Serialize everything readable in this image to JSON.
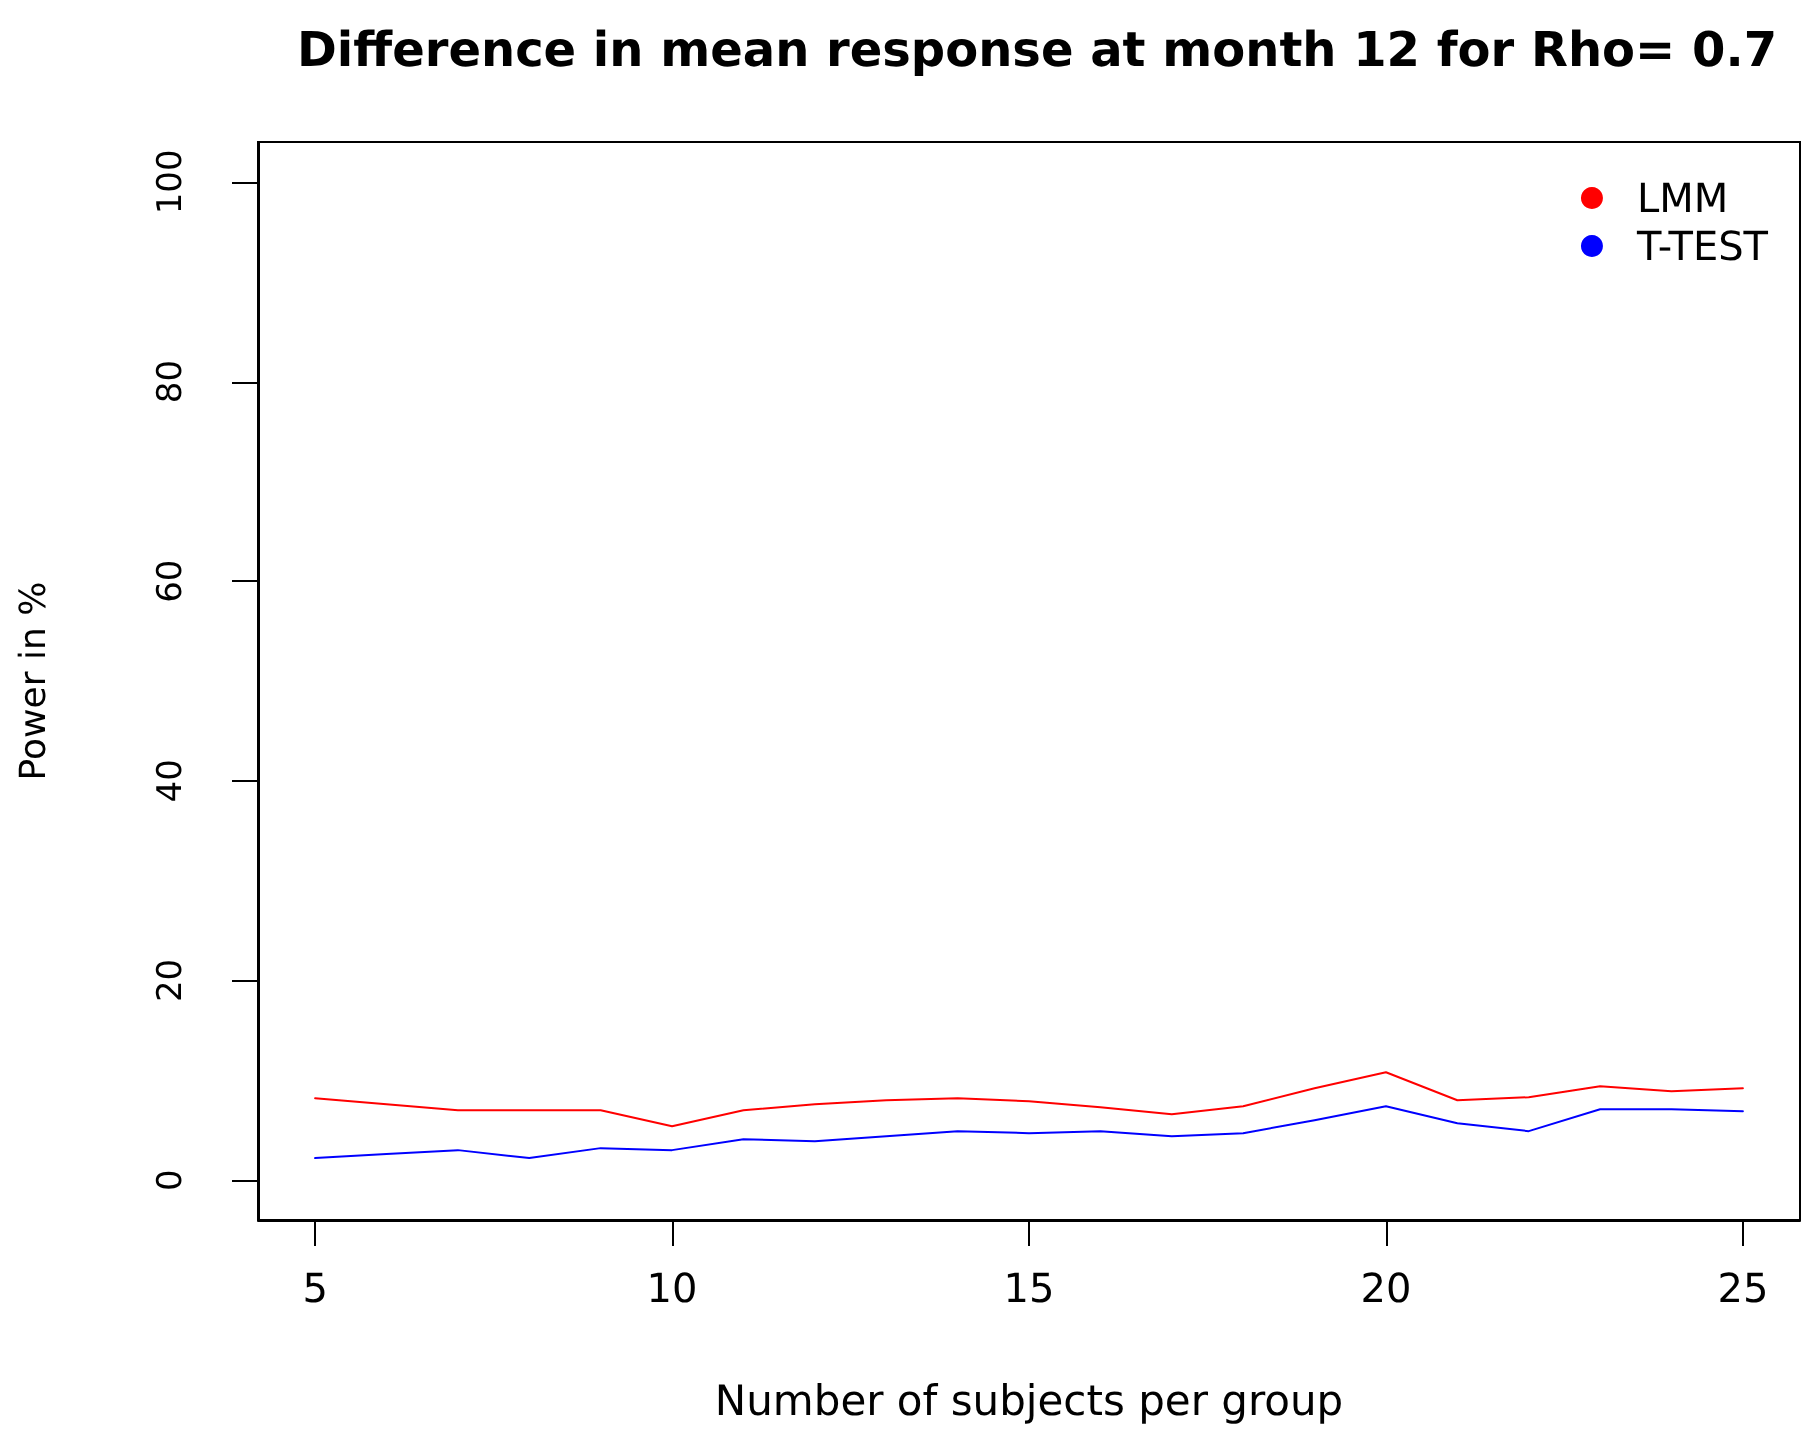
{
  "chart_data": {
    "type": "line",
    "title": "Difference in mean response at month 12 for Rho= 0.7",
    "xlabel": "Number of subjects per group",
    "ylabel": "Power in %",
    "x": [
      5,
      6,
      7,
      8,
      9,
      10,
      11,
      12,
      13,
      14,
      15,
      16,
      17,
      18,
      19,
      20,
      21,
      22,
      23,
      24,
      25
    ],
    "series": [
      {
        "name": "LMM",
        "color": "#ff0000",
        "values": [
          8.2,
          7.6,
          7.0,
          7.0,
          7.0,
          5.4,
          7.0,
          7.6,
          8.0,
          8.2,
          7.9,
          7.3,
          6.6,
          7.4,
          9.2,
          10.8,
          8.0,
          8.3,
          9.4,
          8.9,
          9.2
        ]
      },
      {
        "name": "T-TEST",
        "color": "#0000ff",
        "values": [
          2.2,
          2.6,
          3.0,
          2.2,
          3.2,
          3.0,
          4.1,
          3.9,
          4.4,
          4.9,
          4.7,
          4.9,
          4.4,
          4.7,
          6.0,
          7.4,
          5.7,
          4.9,
          7.1,
          7.1,
          6.9
        ]
      }
    ],
    "xlim": [
      4.2,
      25.8
    ],
    "ylim": [
      -4,
      104
    ],
    "xticks": [
      5,
      10,
      15,
      20,
      25
    ],
    "yticks": [
      0,
      20,
      40,
      60,
      80,
      100
    ],
    "grid": false,
    "legend": "top right",
    "marker": "none",
    "line_style": "solid"
  }
}
